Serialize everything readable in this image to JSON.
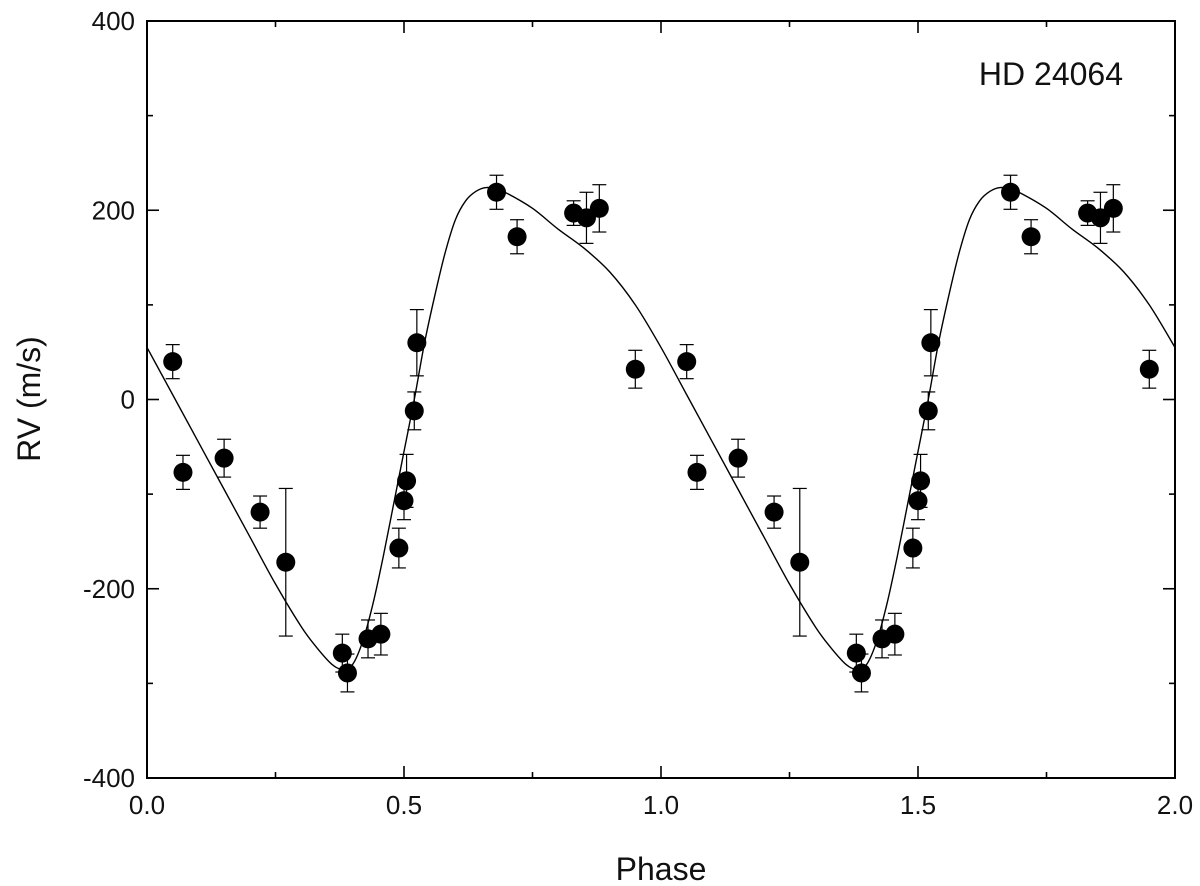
{
  "chart_data": {
    "type": "scatter",
    "title": "",
    "annotation": "HD 24064",
    "xlabel": "Phase",
    "ylabel": "RV (m/s)",
    "xlim": [
      0.0,
      2.0
    ],
    "ylim": [
      -400,
      400
    ],
    "xticks": [
      0.0,
      0.5,
      1.0,
      1.5,
      2.0
    ],
    "xtick_labels": [
      "0.0",
      "0.5",
      "1.0",
      "1.5",
      "2.0"
    ],
    "yticks": [
      -400,
      -200,
      0,
      200,
      400
    ],
    "ytick_labels": [
      "-400",
      "-200",
      "0",
      "200",
      "400"
    ],
    "grid": false,
    "legend": "none",
    "colors": {
      "points": "#000000",
      "curve": "#000000",
      "axes": "#000000"
    },
    "series": [
      {
        "kind": "points-with-error-bars",
        "x": [
          0.05,
          0.07,
          0.15,
          0.22,
          0.27,
          0.38,
          0.39,
          0.43,
          0.455,
          0.49,
          0.5,
          0.505,
          0.52,
          0.525,
          0.68,
          0.72,
          0.83,
          0.855,
          0.88,
          0.95,
          1.05,
          1.07,
          1.15,
          1.22,
          1.27,
          1.38,
          1.39,
          1.43,
          1.455,
          1.49,
          1.5,
          1.505,
          1.52,
          1.525,
          1.68,
          1.72,
          1.83,
          1.855,
          1.88,
          1.95
        ],
        "y": [
          40,
          -77,
          -62,
          -119,
          -172,
          -268,
          -289,
          -253,
          -248,
          -157,
          -107,
          -86,
          -12,
          60,
          219,
          172,
          197,
          192,
          202,
          32,
          40,
          -77,
          -62,
          -119,
          -172,
          -268,
          -289,
          -253,
          -248,
          -157,
          -107,
          -86,
          -12,
          60,
          219,
          172,
          197,
          192,
          202,
          32
        ],
        "err": [
          18,
          18,
          20,
          17,
          78,
          20,
          20,
          20,
          22,
          21,
          20,
          28,
          20,
          35,
          18,
          18,
          13,
          27,
          25,
          20,
          18,
          18,
          20,
          17,
          78,
          20,
          20,
          20,
          22,
          21,
          20,
          28,
          20,
          35,
          18,
          18,
          13,
          27,
          25,
          20
        ]
      },
      {
        "kind": "fit-curve",
        "x": [
          0.0,
          0.05,
          0.1,
          0.15,
          0.2,
          0.25,
          0.3,
          0.33,
          0.36,
          0.38,
          0.4,
          0.42,
          0.44,
          0.46,
          0.48,
          0.5,
          0.52,
          0.54,
          0.56,
          0.58,
          0.6,
          0.62,
          0.64,
          0.66,
          0.68,
          0.7,
          0.75,
          0.8,
          0.85,
          0.9,
          0.95,
          1.0,
          1.05,
          1.1,
          1.15,
          1.2,
          1.25,
          1.3,
          1.33,
          1.36,
          1.38,
          1.4,
          1.42,
          1.44,
          1.46,
          1.48,
          1.5,
          1.52,
          1.54,
          1.56,
          1.58,
          1.6,
          1.62,
          1.64,
          1.66,
          1.68,
          1.7,
          1.75,
          1.8,
          1.85,
          1.9,
          1.95,
          2.0
        ],
        "y": [
          55,
          5,
          -45,
          -95,
          -145,
          -195,
          -240,
          -262,
          -280,
          -285,
          -280,
          -255,
          -215,
          -165,
          -110,
          -55,
          0,
          60,
          110,
          155,
          190,
          210,
          220,
          224,
          222,
          218,
          202,
          180,
          160,
          135,
          100,
          55,
          5,
          -45,
          -95,
          -145,
          -195,
          -240,
          -262,
          -280,
          -285,
          -280,
          -255,
          -215,
          -165,
          -110,
          -55,
          0,
          60,
          110,
          155,
          190,
          210,
          220,
          224,
          222,
          218,
          202,
          180,
          160,
          135,
          100,
          55
        ]
      }
    ]
  }
}
